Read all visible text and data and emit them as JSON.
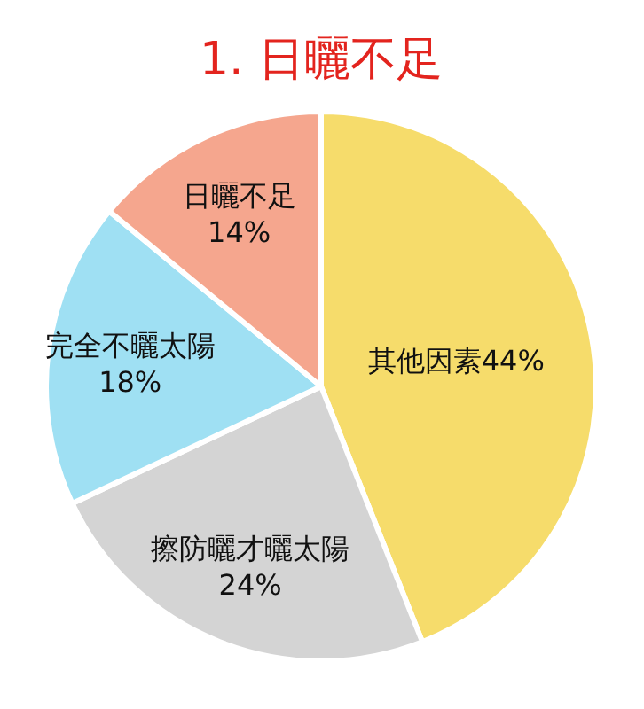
{
  "chart_data": {
    "type": "pie",
    "title": "1. 日曬不足",
    "categories": [
      "其他因素",
      "擦防曬才曬太陽",
      "完全不曬太陽",
      "日曬不足"
    ],
    "values": [
      44,
      24,
      18,
      14
    ],
    "value_labels": [
      "44%",
      "24%",
      "18%",
      "14%"
    ],
    "colors": [
      "#f6dc6b",
      "#d4d4d4",
      "#9fe0f3",
      "#f5a68e"
    ]
  }
}
